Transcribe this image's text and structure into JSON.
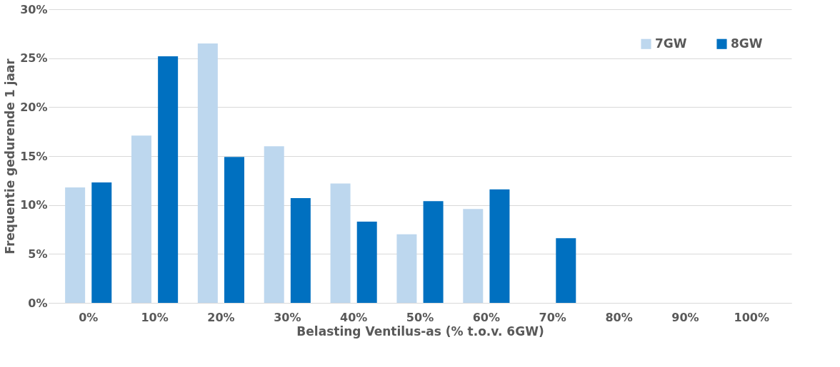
{
  "chart_data": {
    "type": "bar",
    "xlabel": "Belasting Ventilus-as (% t.o.v. 6GW)",
    "ylabel": "Frequentie gedurende 1 jaar",
    "categories": [
      "0%",
      "10%",
      "20%",
      "30%",
      "40%",
      "50%",
      "60%",
      "70%",
      "80%",
      "90%",
      "100%"
    ],
    "series": [
      {
        "name": "7GW",
        "color": "#bdd7ee",
        "values": [
          11.8,
          17.1,
          26.5,
          16.0,
          12.2,
          7.0,
          9.6,
          0,
          0,
          0,
          0
        ]
      },
      {
        "name": "8GW",
        "color": "#0070c0",
        "values": [
          12.3,
          25.2,
          14.9,
          10.7,
          8.3,
          10.4,
          11.6,
          6.6,
          0,
          0,
          0
        ]
      }
    ],
    "ylim": [
      0,
      30
    ],
    "yticks": [
      {
        "value": 0,
        "label": "0%"
      },
      {
        "value": 5,
        "label": "5%"
      },
      {
        "value": 10,
        "label": "10%"
      },
      {
        "value": 15,
        "label": "15%"
      },
      {
        "value": 20,
        "label": "20%"
      },
      {
        "value": 25,
        "label": "25%"
      },
      {
        "value": 30,
        "label": "30%"
      }
    ],
    "grid": "y",
    "legend": "top right"
  }
}
